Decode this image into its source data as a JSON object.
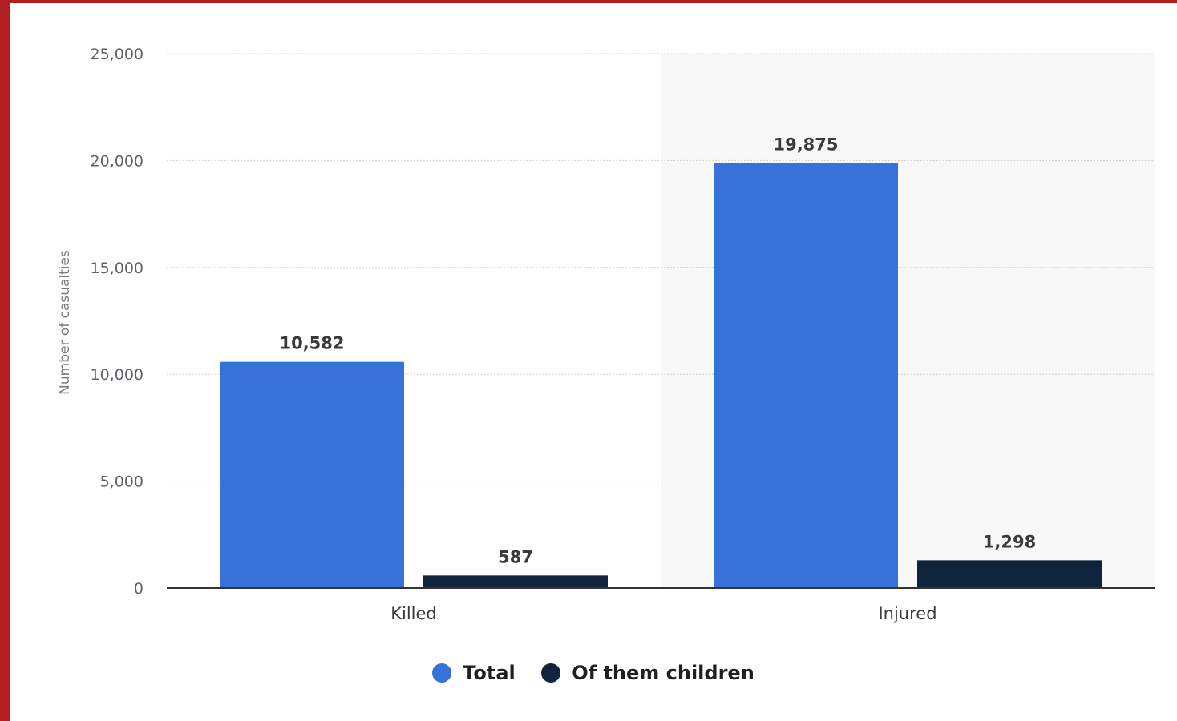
{
  "chart_data": {
    "type": "bar",
    "categories": [
      "Killed",
      "Injured"
    ],
    "series": [
      {
        "name": "Total",
        "values": [
          10582,
          19875
        ],
        "labels": [
          "10,582",
          "19,875"
        ],
        "color": "#3672da"
      },
      {
        "name": "Of them children",
        "values": [
          587,
          1298
        ],
        "labels": [
          "587",
          "1,298"
        ],
        "color": "#10243d"
      }
    ],
    "ylabel": "Number of casualties",
    "ylim": [
      0,
      25000
    ],
    "yticks": [
      0,
      5000,
      10000,
      15000,
      20000,
      25000
    ],
    "ytick_labels": [
      "0",
      "5,000",
      "10,000",
      "15,000",
      "20,000",
      "25,000"
    ],
    "highlight_category": "Injured",
    "grid": true,
    "legend_position": "bottom-center"
  },
  "colors": {
    "frame": "#b21e22",
    "highlight_band": "#f8f8f8",
    "grid": "#d0d0d0",
    "axis": "#333333"
  }
}
